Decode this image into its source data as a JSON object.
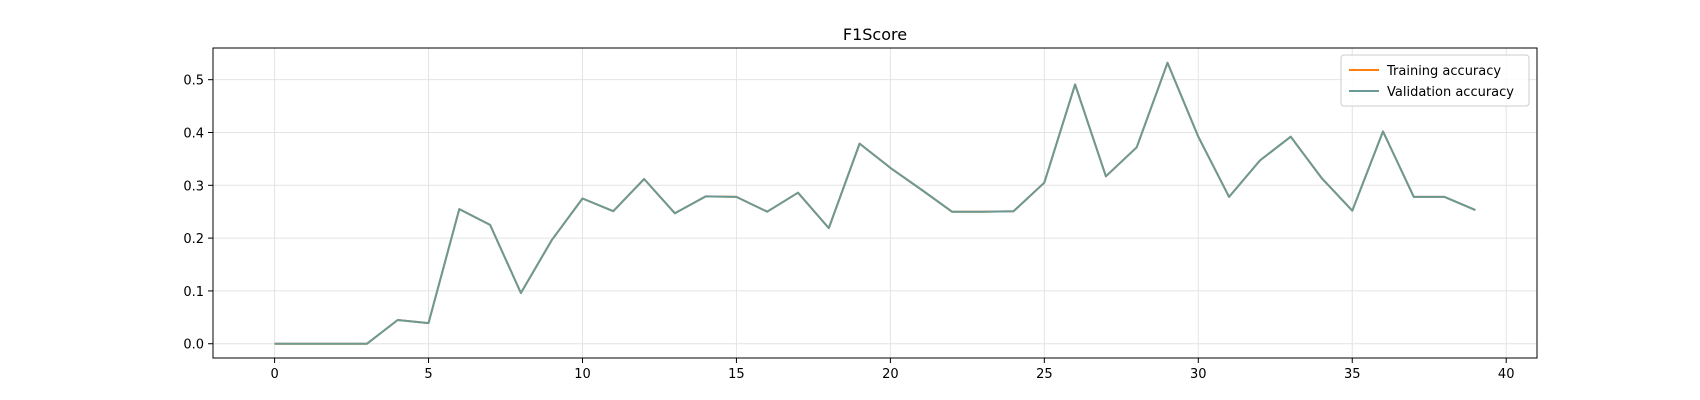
{
  "chart_data": {
    "type": "line",
    "title": "F1Score",
    "xlabel": "",
    "ylabel": "",
    "xlim": [
      -2,
      41
    ],
    "ylim": [
      -0.027,
      0.56
    ],
    "xticks": [
      0,
      5,
      10,
      15,
      20,
      25,
      30,
      35,
      40
    ],
    "yticks": [
      0.0,
      0.1,
      0.2,
      0.3,
      0.4,
      0.5
    ],
    "ytick_labels": [
      "0.0",
      "0.1",
      "0.2",
      "0.3",
      "0.4",
      "0.5"
    ],
    "grid": true,
    "legend_position": "top-right",
    "x": [
      0,
      1,
      2,
      3,
      4,
      5,
      6,
      7,
      8,
      9,
      10,
      11,
      12,
      13,
      14,
      15,
      16,
      17,
      18,
      19,
      20,
      21,
      22,
      23,
      24,
      25,
      26,
      27,
      28,
      29,
      30,
      31,
      32,
      33,
      34,
      35,
      36,
      37,
      38,
      39
    ],
    "series": [
      {
        "name": "Training accuracy",
        "color": "#ff7f0e",
        "values": [
          0,
          0,
          0,
          0,
          0.045,
          0.039,
          0.255,
          0.225,
          0.096,
          0.196,
          0.275,
          0.251,
          0.312,
          0.247,
          0.279,
          0.278,
          0.25,
          0.286,
          0.219,
          0.379,
          0.333,
          0.292,
          0.25,
          0.25,
          0.251,
          0.305,
          0.491,
          0.317,
          0.372,
          0.532,
          0.392,
          0.278,
          0.347,
          0.392,
          0.314,
          0.252,
          0.402,
          0.278,
          0.278,
          0.253
        ]
      },
      {
        "name": "Validation accuracy",
        "color": "#6a9a96",
        "values": [
          0,
          0,
          0,
          0,
          0.045,
          0.039,
          0.255,
          0.225,
          0.096,
          0.196,
          0.275,
          0.251,
          0.312,
          0.247,
          0.279,
          0.278,
          0.25,
          0.286,
          0.219,
          0.379,
          0.333,
          0.292,
          0.25,
          0.25,
          0.251,
          0.305,
          0.491,
          0.317,
          0.372,
          0.532,
          0.392,
          0.278,
          0.347,
          0.392,
          0.314,
          0.252,
          0.402,
          0.278,
          0.278,
          0.253
        ]
      }
    ]
  }
}
